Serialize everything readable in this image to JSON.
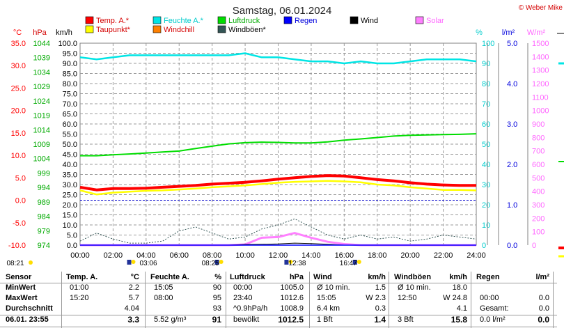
{
  "title": "Samstag, 06.01.2024",
  "copyright": "© Weber Mike",
  "colors": {
    "temp": "#ff0000",
    "humidity": "#00e5e5",
    "pressure": "#00dd00",
    "rain": "#0000ff",
    "wind": "#000000",
    "solar": "#ff80ff",
    "dewpoint": "#ffff00",
    "windchill": "#ff8000",
    "gust": "#335555",
    "grid": "#9a9a9a"
  },
  "legend": [
    {
      "label": "Temp. A.*",
      "color": "#ff0000",
      "text_color": "#d40000"
    },
    {
      "label": "Feuchte A.*",
      "color": "#00e5e5",
      "text_color": "#00cccc"
    },
    {
      "label": "Luftdruck",
      "color": "#00dd00",
      "text_color": "#00aa00"
    },
    {
      "label": "Regen",
      "color": "#0000ff",
      "text_color": "#0000dd"
    },
    {
      "label": "Wind",
      "color": "#000000",
      "text_color": "#000000"
    },
    {
      "label": "Solar",
      "color": "#ff80ff",
      "text_color": "#ff66ff"
    },
    {
      "label": "Taupunkt*",
      "color": "#ffff00",
      "text_color": "#d40000"
    },
    {
      "label": "Windchill",
      "color": "#ff8000",
      "text_color": "#d40000"
    },
    {
      "label": "Windböen*",
      "color": "#335555",
      "text_color": "#000000"
    }
  ],
  "chart_data": {
    "type": "line",
    "x": [
      0,
      1,
      2,
      3,
      4,
      5,
      6,
      7,
      8,
      9,
      10,
      11,
      12,
      13,
      14,
      15,
      16,
      17,
      18,
      19,
      20,
      21,
      22,
      23,
      24
    ],
    "xlim": [
      0,
      24
    ],
    "x_tick_labels": [
      "00:00",
      "02:00",
      "04:00",
      "06:00",
      "08:00",
      "10:00",
      "12:00",
      "14:00",
      "16:00",
      "18:00",
      "20:00",
      "22:00",
      "24:00"
    ],
    "axes": {
      "temp_c": {
        "unit": "°C",
        "range": [
          -10,
          35
        ],
        "ticks": [
          "35.0",
          "30.0",
          "25.0",
          "20.0",
          "15.0",
          "10.0",
          "5.0",
          "0.0",
          "-5.0",
          "-10.0"
        ]
      },
      "pressure_hpa": {
        "unit": "hPa",
        "range": [
          974,
          1044
        ],
        "ticks": [
          "1044",
          "1039",
          "1034",
          "1029",
          "1024",
          "1019",
          "1014",
          "1009",
          "1004",
          "999",
          "994",
          "989",
          "984",
          "979",
          "974"
        ]
      },
      "wind_kmh": {
        "unit": "km/h",
        "range": [
          0,
          100
        ],
        "ticks": [
          "100.0",
          "95.0",
          "90.0",
          "85.0",
          "80.0",
          "75.0",
          "70.0",
          "65.0",
          "60.0",
          "55.0",
          "50.0",
          "45.0",
          "40.0",
          "35.0",
          "30.0",
          "25.0",
          "20.0",
          "15.0",
          "10.0",
          "5.0",
          "0.0"
        ]
      },
      "humidity_pct": {
        "unit": "%",
        "range": [
          0,
          100
        ],
        "ticks": [
          "100",
          "90",
          "80",
          "70",
          "60",
          "50",
          "40",
          "30",
          "20",
          "10",
          "0"
        ]
      },
      "rain_lm2": {
        "unit": "l/m²",
        "range": [
          0,
          5
        ],
        "ticks": [
          "5.0",
          "4.0",
          "3.0",
          "2.0",
          "1.0",
          "0.0"
        ]
      },
      "solar_wm2": {
        "unit": "W/m²",
        "range": [
          0,
          1500
        ],
        "ticks": [
          "1500",
          "1400",
          "1300",
          "1200",
          "1100",
          "1000",
          "900",
          "800",
          "700",
          "600",
          "500",
          "400",
          "300",
          "200",
          "100",
          "0"
        ]
      }
    },
    "series": [
      {
        "name": "Temp. A.*",
        "axis": "temp_c",
        "values": [
          2.9,
          2.3,
          2.6,
          2.6,
          2.7,
          2.9,
          3.1,
          3.3,
          3.6,
          3.8,
          4.0,
          4.3,
          4.7,
          5.0,
          5.3,
          5.5,
          5.4,
          5.0,
          4.6,
          4.3,
          3.9,
          3.6,
          3.4,
          3.3,
          3.3
        ]
      },
      {
        "name": "Taupunkt*",
        "axis": "temp_c",
        "values": [
          2.2,
          1.3,
          1.7,
          1.9,
          2.1,
          2.2,
          2.4,
          2.6,
          2.9,
          3.1,
          3.3,
          3.6,
          3.9,
          4.1,
          4.2,
          4.3,
          4.2,
          4.0,
          3.5,
          3.3,
          2.9,
          2.6,
          2.3,
          2.3,
          2.2
        ]
      },
      {
        "name": "Feuchte A.*",
        "axis": "humidity_pct",
        "values": [
          93,
          92,
          93,
          94,
          94,
          94,
          94,
          94,
          94,
          94,
          95,
          93,
          93,
          92,
          91,
          91,
          90,
          91,
          90,
          90,
          91,
          92,
          92,
          92,
          91
        ]
      },
      {
        "name": "Luftdruck",
        "axis": "pressure_hpa",
        "values": [
          1005.0,
          1005.0,
          1005.3,
          1005.6,
          1005.9,
          1006.3,
          1006.6,
          1007.5,
          1008.3,
          1009.1,
          1009.5,
          1009.7,
          1009.6,
          1009.4,
          1009.4,
          1009.8,
          1010.4,
          1010.8,
          1011.3,
          1011.8,
          1012.1,
          1012.2,
          1012.3,
          1012.4,
          1012.6
        ]
      },
      {
        "name": "Windböen*",
        "axis": "wind_kmh",
        "values": [
          2,
          6,
          3,
          1,
          1,
          2,
          7,
          9,
          6,
          3,
          4,
          8,
          10,
          13,
          9,
          5,
          3,
          5,
          3,
          4,
          2,
          3,
          5,
          4,
          3
        ]
      },
      {
        "name": "Wind",
        "axis": "wind_kmh",
        "values": [
          0,
          0,
          0,
          0,
          0,
          0,
          0,
          0,
          0,
          0,
          0.3,
          0.4,
          0.6,
          1.0,
          0.8,
          0.4,
          0,
          0,
          0,
          0,
          0,
          0,
          0,
          0,
          0
        ]
      },
      {
        "name": "Solar",
        "axis": "solar_wm2",
        "values": [
          0,
          0,
          0,
          0,
          0,
          0,
          0,
          0,
          0,
          0,
          5,
          55,
          60,
          90,
          55,
          25,
          8,
          0,
          0,
          0,
          0,
          0,
          0,
          0,
          0
        ]
      },
      {
        "name": "Regen",
        "axis": "rain_lm2",
        "values": [
          0,
          0,
          0,
          0,
          0,
          0,
          0,
          0,
          0,
          0,
          0,
          0,
          0,
          0,
          0,
          0,
          0,
          0,
          0,
          0,
          0,
          0,
          0,
          0,
          0
        ]
      }
    ],
    "reference_line": {
      "axis": "temp_c",
      "value": 0
    },
    "sun_markers": [
      {
        "label": "08:21",
        "x": 0
      },
      {
        "label": "03:06",
        "x": 3.1
      },
      {
        "label": "08:25",
        "x": 8.42
      },
      {
        "label": "12:38",
        "x": 12.63
      },
      {
        "label": "16:47",
        "x": 16.78
      }
    ],
    "grid": true,
    "legend_placement": "top"
  },
  "stats": {
    "headers": [
      {
        "label": "Sensor",
        "unit": ""
      },
      {
        "label": "Temp. A.",
        "unit": "°C"
      },
      {
        "label": "Feuchte A.",
        "unit": "%"
      },
      {
        "label": "Luftdruck",
        "unit": "hPa"
      },
      {
        "label": "Wind",
        "unit": "km/h"
      },
      {
        "label": "Windböen",
        "unit": "km/h"
      },
      {
        "label": "Regen",
        "unit": "l/m²"
      }
    ],
    "rows": [
      {
        "label": "MinWert",
        "cells": [
          [
            "01:00",
            "2.2"
          ],
          [
            "15:05",
            "90"
          ],
          [
            "00:00",
            "1005.0"
          ],
          [
            "Ø 10 min.",
            "1.5"
          ],
          [
            "Ø 10 min.",
            "18.0"
          ],
          [
            "",
            ""
          ]
        ]
      },
      {
        "label": "MaxWert",
        "cells": [
          [
            "15:20",
            "5.7"
          ],
          [
            "08:00",
            "95"
          ],
          [
            "23:40",
            "1012.6"
          ],
          [
            "15:05",
            "W 2.3"
          ],
          [
            "12:50",
            "W 24.8"
          ],
          [
            "00:00",
            "0.0"
          ]
        ]
      },
      {
        "label": "Durchschnitt",
        "cells": [
          [
            "",
            "4.04"
          ],
          [
            "",
            "93"
          ],
          [
            "^0.9hPa/h",
            "1008.9"
          ],
          [
            "6.4 km",
            "0.3"
          ],
          [
            "",
            "4.1"
          ],
          [
            "Gesamt:",
            "0.0"
          ]
        ]
      },
      {
        "label": "06.01. 23:55",
        "cells": [
          [
            "",
            "3.3"
          ],
          [
            "5.52 g/m³",
            "91"
          ],
          [
            "bewölkt",
            "1012.5"
          ],
          [
            "1 Bft",
            "1.4"
          ],
          [
            "3 Bft",
            "15.8"
          ],
          [
            "0.0 l/m²",
            "0.0"
          ]
        ]
      }
    ]
  }
}
